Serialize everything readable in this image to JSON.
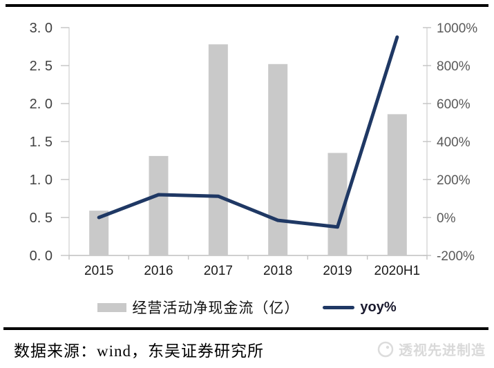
{
  "chart_data": {
    "type": "bar+line",
    "title": "",
    "categories": [
      "2015",
      "2016",
      "2017",
      "2018",
      "2019",
      "2020H1"
    ],
    "series": [
      {
        "name": "经营活动净现金流（亿）",
        "type": "bar",
        "axis": "left",
        "color": "#c9c9c9",
        "values": [
          0.59,
          1.31,
          2.78,
          2.52,
          1.35,
          1.86
        ]
      },
      {
        "name": "yoy%",
        "type": "line",
        "axis": "right",
        "color": "#1f3864",
        "values": [
          0,
          120,
          112,
          -15,
          -50,
          950
        ]
      }
    ],
    "left_axis": {
      "tick_labels": [
        "3. 0",
        "2. 5",
        "2. 0",
        "1. 5",
        "1. 0",
        "0. 5",
        "0. 0"
      ],
      "tick_values": [
        3.0,
        2.5,
        2.0,
        1.5,
        1.0,
        0.5,
        0.0
      ],
      "range": [
        0,
        3
      ],
      "label_color": "#404040"
    },
    "right_axis": {
      "tick_labels": [
        "1000%",
        "800%",
        "600%",
        "400%",
        "200%",
        "0%",
        "-200%"
      ],
      "tick_values": [
        1000,
        800,
        600,
        400,
        200,
        0,
        -200
      ],
      "range": [
        -200,
        1000
      ],
      "label_color": "#595959"
    },
    "x_axis": {
      "label_color": "#1a1a1a"
    },
    "grid": false,
    "legend_position": "bottom",
    "axis_line_color": "#d6d6d6",
    "tick_mark_color": "#c3c3c3"
  },
  "footer": {
    "source_text": "数据来源：wind，东吴证券研究所",
    "watermark_text": "透视先进制造"
  }
}
